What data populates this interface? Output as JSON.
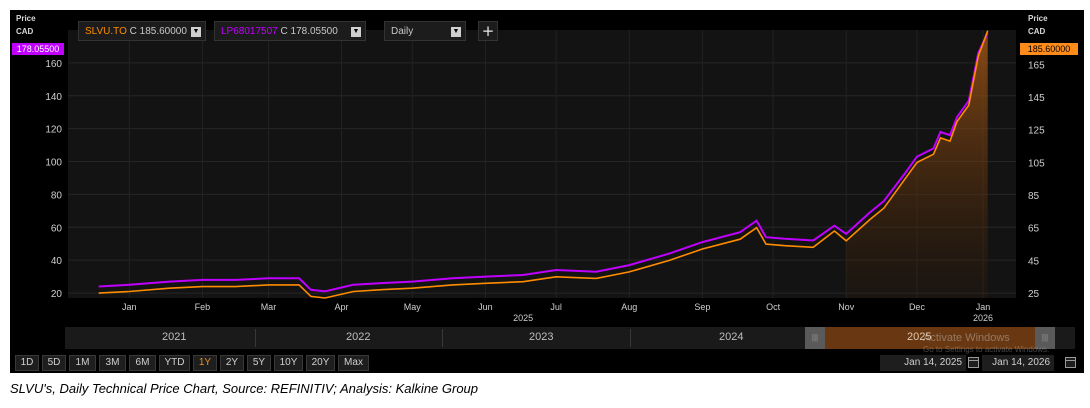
{
  "toolbar": {
    "series1_symbol": "SLVU.TO",
    "series1_value": "C 185.60000",
    "series2_symbol": "LP68017507",
    "series2_value": "C 178.05500",
    "interval": "Daily",
    "add_label": "+"
  },
  "left_axis": {
    "title": "Price",
    "currency": "CAD",
    "last_value": "178.05500"
  },
  "right_axis": {
    "title": "Price",
    "currency": "CAD",
    "last_value": "185.60000"
  },
  "colors": {
    "series1": "#ff8c00",
    "series2": "#c000ff",
    "badge_left": "#c000ff",
    "badge_right": "#ff8c1a"
  },
  "chart_data": {
    "type": "line",
    "x_tick_labels": [
      "Jan",
      "Feb",
      "Mar",
      "Apr",
      "May",
      "Jun",
      "Jul",
      "Aug",
      "Sep",
      "Oct",
      "Nov",
      "Dec",
      "Jan"
    ],
    "x_year_labels": [
      "2025",
      "2026"
    ],
    "left_y_ticks": [
      20,
      40,
      60,
      80,
      100,
      120,
      140,
      160
    ],
    "right_y_ticks": [
      25,
      45,
      65,
      85,
      105,
      125,
      145,
      165
    ],
    "left_ylim": [
      17,
      180
    ],
    "right_ylim": [
      22,
      186
    ],
    "series": [
      {
        "name": "SLVU.TO",
        "axis": "right",
        "x": [
          "2025-01-02",
          "2025-01-15",
          "2025-02-01",
          "2025-02-15",
          "2025-03-01",
          "2025-03-15",
          "2025-03-28",
          "2025-04-02",
          "2025-04-08",
          "2025-04-20",
          "2025-05-01",
          "2025-05-15",
          "2025-06-01",
          "2025-06-15",
          "2025-07-01",
          "2025-07-15",
          "2025-08-01",
          "2025-08-15",
          "2025-09-01",
          "2025-09-15",
          "2025-10-01",
          "2025-10-08",
          "2025-10-12",
          "2025-10-20",
          "2025-11-01",
          "2025-11-10",
          "2025-11-15",
          "2025-11-25",
          "2025-12-01",
          "2025-12-10",
          "2025-12-15",
          "2025-12-22",
          "2025-12-25",
          "2025-12-29",
          "2026-01-01",
          "2026-01-06",
          "2026-01-10",
          "2026-01-14"
        ],
        "y": [
          25,
          26,
          28,
          29,
          29,
          30,
          30,
          23,
          22,
          26,
          27,
          28,
          30,
          31,
          32,
          35,
          34,
          38,
          45,
          52,
          58,
          65,
          55,
          54,
          53,
          63,
          57,
          70,
          77,
          95,
          105,
          110,
          120,
          118,
          130,
          140,
          170,
          185.6
        ]
      },
      {
        "name": "LP68017507",
        "axis": "left",
        "x": [
          "2025-01-02",
          "2025-01-15",
          "2025-02-01",
          "2025-02-15",
          "2025-03-01",
          "2025-03-15",
          "2025-03-28",
          "2025-04-02",
          "2025-04-08",
          "2025-04-20",
          "2025-05-01",
          "2025-05-15",
          "2025-06-01",
          "2025-06-15",
          "2025-07-01",
          "2025-07-15",
          "2025-08-01",
          "2025-08-15",
          "2025-09-01",
          "2025-09-15",
          "2025-10-01",
          "2025-10-08",
          "2025-10-12",
          "2025-10-20",
          "2025-11-01",
          "2025-11-10",
          "2025-11-15",
          "2025-11-25",
          "2025-12-01",
          "2025-12-10",
          "2025-12-15",
          "2025-12-22",
          "2025-12-25",
          "2025-12-29",
          "2026-01-01",
          "2026-01-06",
          "2026-01-10",
          "2026-01-14"
        ],
        "y": [
          24,
          25,
          27,
          28,
          28,
          29,
          29,
          22,
          21,
          25,
          26,
          27,
          29,
          30,
          31,
          34,
          33,
          37,
          44,
          51,
          57,
          64,
          54,
          53,
          52,
          61,
          56,
          69,
          76,
          93,
          103,
          108,
          118,
          116,
          127,
          137,
          166,
          178.055
        ]
      }
    ]
  },
  "navigator": {
    "years": [
      "2021",
      "2022",
      "2023",
      "2024",
      "2025"
    ]
  },
  "range_buttons": [
    "1D",
    "5D",
    "1M",
    "3M",
    "6M",
    "YTD",
    "1Y",
    "2Y",
    "5Y",
    "10Y",
    "20Y",
    "Max"
  ],
  "active_range": "1Y",
  "date_range": {
    "from": "Jan 14, 2025",
    "to": "Jan 14, 2026"
  },
  "watermark": {
    "line1": "Activate Windows",
    "line2": "Go to Settings to activate Windows."
  },
  "caption": "SLVU's, Daily Technical Price Chart, Source: REFINITIV; Analysis: Kalkine Group"
}
